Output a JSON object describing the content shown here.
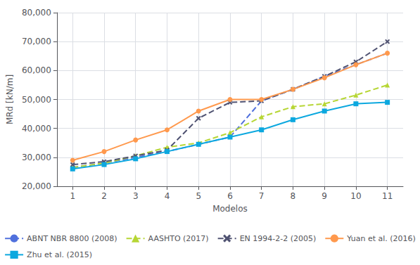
{
  "chart_data": {
    "type": "line",
    "xlabel": "Modelos",
    "ylabel": "MRd [kN/m]",
    "x": [
      1,
      2,
      3,
      4,
      5,
      6,
      7,
      8,
      9,
      10,
      11
    ],
    "series": [
      {
        "name": "ABNT NBR 8800 (2008)",
        "marker": "none",
        "line_style": "dashed",
        "values": [
          26500,
          28000,
          30000,
          32000,
          34500,
          37000,
          49500,
          53500,
          58000,
          62000,
          66000
        ]
      },
      {
        "name": "AASHTO (2017)",
        "marker": "triangle",
        "line_style": "dashed",
        "values": [
          26500,
          28000,
          30500,
          33500,
          35000,
          38500,
          44000,
          47500,
          48500,
          51500,
          55000
        ]
      },
      {
        "name": "EN 1994-2-2 (2005)",
        "marker": "x",
        "line_style": "dashed",
        "values": [
          27500,
          28500,
          30500,
          32500,
          43500,
          49000,
          49500,
          53500,
          58000,
          63000,
          70000
        ]
      },
      {
        "name": "Yuan et al. (2016)",
        "marker": "circle",
        "line_style": "solid",
        "values": [
          29000,
          32000,
          36000,
          39500,
          46000,
          50000,
          50000,
          53500,
          57500,
          62000,
          66000
        ]
      },
      {
        "name": "Zhu et al. (2015)",
        "marker": "square",
        "line_style": "solid",
        "values": [
          26000,
          27500,
          29500,
          32000,
          34500,
          37000,
          39500,
          43000,
          46000,
          48500,
          49000
        ]
      }
    ],
    "xlim": [
      0.5,
      11.5
    ],
    "xticks": [
      1,
      2,
      3,
      4,
      5,
      6,
      7,
      8,
      9,
      10,
      11
    ],
    "ylim": [
      20000,
      80000
    ],
    "yticks": [
      {
        "value": 20000,
        "label": "20,000"
      },
      {
        "value": 30000,
        "label": "30,000"
      },
      {
        "value": 40000,
        "label": "40,000"
      },
      {
        "value": 50000,
        "label": "50,000"
      },
      {
        "value": 60000,
        "label": "60,000"
      },
      {
        "value": 70000,
        "label": "70,000"
      },
      {
        "value": 80000,
        "label": "80,000"
      }
    ],
    "grid": true,
    "legend": "bottom"
  }
}
